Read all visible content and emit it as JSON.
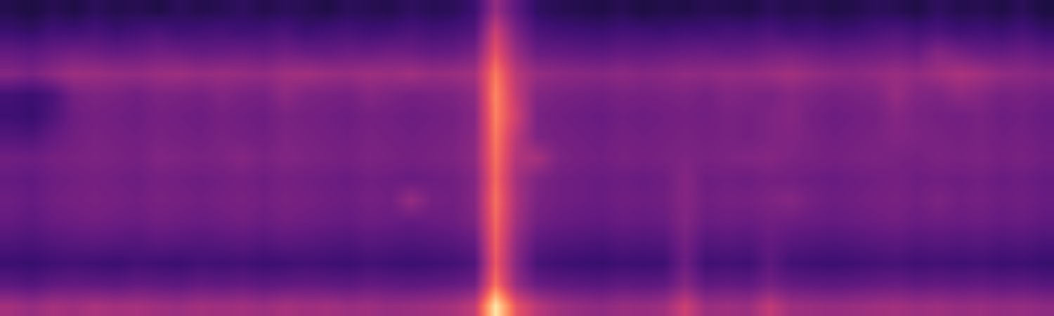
{
  "chart_data": {
    "type": "heatmap",
    "tick_labels": false,
    "color": "magma",
    "zlim": [
      0,
      1
    ],
    "cells": [
      [
        0.14,
        0.12,
        0.15,
        0.13,
        0.16,
        0.14,
        0.15,
        0.13,
        0.16,
        0.14,
        0.15,
        0.17,
        0.14,
        0.16,
        0.15,
        0.13,
        0.16,
        0.15,
        0.14,
        0.17,
        0.15,
        0.16,
        0.2,
        0.42,
        0.28,
        0.17,
        0.15,
        0.14,
        0.13,
        0.15,
        0.12,
        0.14,
        0.13,
        0.15,
        0.14,
        0.13,
        0.16,
        0.14,
        0.15,
        0.13,
        0.14,
        0.16,
        0.15,
        0.13,
        0.17,
        0.14,
        0.15,
        0.13,
        0.16,
        0.12
      ],
      [
        0.2,
        0.18,
        0.22,
        0.21,
        0.23,
        0.2,
        0.22,
        0.24,
        0.21,
        0.22,
        0.23,
        0.21,
        0.22,
        0.24,
        0.2,
        0.22,
        0.23,
        0.21,
        0.22,
        0.24,
        0.22,
        0.23,
        0.26,
        0.55,
        0.35,
        0.24,
        0.22,
        0.21,
        0.2,
        0.22,
        0.21,
        0.2,
        0.22,
        0.21,
        0.23,
        0.22,
        0.24,
        0.21,
        0.22,
        0.2,
        0.21,
        0.23,
        0.25,
        0.22,
        0.24,
        0.21,
        0.22,
        0.2,
        0.23,
        0.19
      ],
      [
        0.3,
        0.28,
        0.31,
        0.33,
        0.32,
        0.3,
        0.31,
        0.33,
        0.32,
        0.3,
        0.31,
        0.32,
        0.3,
        0.33,
        0.31,
        0.3,
        0.32,
        0.31,
        0.33,
        0.32,
        0.3,
        0.31,
        0.35,
        0.62,
        0.42,
        0.31,
        0.3,
        0.29,
        0.28,
        0.3,
        0.29,
        0.3,
        0.31,
        0.32,
        0.3,
        0.31,
        0.33,
        0.34,
        0.32,
        0.3,
        0.31,
        0.32,
        0.33,
        0.31,
        0.38,
        0.34,
        0.31,
        0.3,
        0.32,
        0.29
      ],
      [
        0.38,
        0.35,
        0.4,
        0.44,
        0.43,
        0.42,
        0.41,
        0.43,
        0.44,
        0.42,
        0.43,
        0.42,
        0.41,
        0.44,
        0.45,
        0.43,
        0.42,
        0.44,
        0.43,
        0.45,
        0.42,
        0.43,
        0.45,
        0.72,
        0.5,
        0.42,
        0.4,
        0.39,
        0.38,
        0.4,
        0.38,
        0.39,
        0.41,
        0.4,
        0.42,
        0.41,
        0.43,
        0.45,
        0.42,
        0.4,
        0.39,
        0.41,
        0.43,
        0.41,
        0.44,
        0.47,
        0.45,
        0.41,
        0.4,
        0.38
      ],
      [
        0.22,
        0.2,
        0.24,
        0.34,
        0.36,
        0.35,
        0.33,
        0.36,
        0.35,
        0.34,
        0.37,
        0.35,
        0.34,
        0.4,
        0.36,
        0.35,
        0.34,
        0.38,
        0.36,
        0.34,
        0.35,
        0.36,
        0.4,
        0.75,
        0.52,
        0.37,
        0.35,
        0.34,
        0.33,
        0.35,
        0.34,
        0.35,
        0.36,
        0.34,
        0.37,
        0.36,
        0.35,
        0.38,
        0.36,
        0.34,
        0.35,
        0.36,
        0.42,
        0.37,
        0.36,
        0.4,
        0.38,
        0.34,
        0.35,
        0.33
      ],
      [
        0.21,
        0.19,
        0.25,
        0.32,
        0.34,
        0.33,
        0.32,
        0.34,
        0.33,
        0.32,
        0.34,
        0.33,
        0.32,
        0.35,
        0.34,
        0.33,
        0.32,
        0.34,
        0.33,
        0.32,
        0.33,
        0.34,
        0.38,
        0.74,
        0.55,
        0.35,
        0.33,
        0.32,
        0.31,
        0.33,
        0.32,
        0.33,
        0.34,
        0.33,
        0.35,
        0.34,
        0.36,
        0.38,
        0.34,
        0.32,
        0.33,
        0.34,
        0.38,
        0.35,
        0.34,
        0.33,
        0.35,
        0.32,
        0.33,
        0.31
      ],
      [
        0.26,
        0.25,
        0.3,
        0.33,
        0.35,
        0.34,
        0.33,
        0.35,
        0.34,
        0.33,
        0.35,
        0.34,
        0.33,
        0.36,
        0.35,
        0.34,
        0.33,
        0.35,
        0.34,
        0.33,
        0.34,
        0.35,
        0.39,
        0.72,
        0.5,
        0.36,
        0.34,
        0.33,
        0.32,
        0.34,
        0.33,
        0.34,
        0.35,
        0.34,
        0.35,
        0.34,
        0.36,
        0.37,
        0.35,
        0.33,
        0.34,
        0.35,
        0.37,
        0.36,
        0.35,
        0.34,
        0.35,
        0.33,
        0.34,
        0.32
      ],
      [
        0.33,
        0.32,
        0.34,
        0.35,
        0.36,
        0.35,
        0.34,
        0.37,
        0.36,
        0.35,
        0.36,
        0.38,
        0.35,
        0.37,
        0.36,
        0.35,
        0.34,
        0.36,
        0.35,
        0.34,
        0.35,
        0.36,
        0.4,
        0.7,
        0.48,
        0.46,
        0.36,
        0.34,
        0.33,
        0.35,
        0.34,
        0.35,
        0.36,
        0.35,
        0.36,
        0.37,
        0.38,
        0.36,
        0.35,
        0.34,
        0.35,
        0.36,
        0.35,
        0.34,
        0.36,
        0.35,
        0.36,
        0.34,
        0.35,
        0.33
      ],
      [
        0.3,
        0.29,
        0.32,
        0.33,
        0.34,
        0.33,
        0.32,
        0.34,
        0.33,
        0.32,
        0.33,
        0.34,
        0.32,
        0.34,
        0.33,
        0.32,
        0.31,
        0.33,
        0.32,
        0.31,
        0.32,
        0.33,
        0.37,
        0.68,
        0.45,
        0.36,
        0.33,
        0.32,
        0.31,
        0.32,
        0.31,
        0.32,
        0.38,
        0.32,
        0.33,
        0.32,
        0.34,
        0.33,
        0.32,
        0.31,
        0.32,
        0.33,
        0.34,
        0.32,
        0.33,
        0.32,
        0.33,
        0.31,
        0.32,
        0.3
      ],
      [
        0.32,
        0.3,
        0.33,
        0.34,
        0.35,
        0.34,
        0.33,
        0.35,
        0.34,
        0.33,
        0.34,
        0.35,
        0.33,
        0.35,
        0.34,
        0.33,
        0.32,
        0.34,
        0.33,
        0.42,
        0.34,
        0.33,
        0.38,
        0.7,
        0.46,
        0.35,
        0.33,
        0.32,
        0.31,
        0.33,
        0.32,
        0.33,
        0.38,
        0.33,
        0.34,
        0.34,
        0.36,
        0.38,
        0.34,
        0.32,
        0.33,
        0.34,
        0.35,
        0.33,
        0.36,
        0.33,
        0.34,
        0.32,
        0.33,
        0.31
      ],
      [
        0.3,
        0.28,
        0.31,
        0.32,
        0.33,
        0.32,
        0.31,
        0.33,
        0.32,
        0.31,
        0.32,
        0.33,
        0.31,
        0.33,
        0.32,
        0.31,
        0.3,
        0.32,
        0.31,
        0.3,
        0.31,
        0.32,
        0.36,
        0.68,
        0.44,
        0.33,
        0.31,
        0.3,
        0.29,
        0.31,
        0.3,
        0.31,
        0.37,
        0.31,
        0.32,
        0.31,
        0.33,
        0.32,
        0.31,
        0.3,
        0.31,
        0.32,
        0.33,
        0.31,
        0.32,
        0.31,
        0.32,
        0.3,
        0.31,
        0.29
      ],
      [
        0.25,
        0.24,
        0.26,
        0.27,
        0.28,
        0.27,
        0.26,
        0.28,
        0.27,
        0.26,
        0.27,
        0.28,
        0.26,
        0.28,
        0.27,
        0.26,
        0.25,
        0.27,
        0.26,
        0.25,
        0.26,
        0.27,
        0.3,
        0.66,
        0.4,
        0.28,
        0.26,
        0.25,
        0.24,
        0.26,
        0.25,
        0.26,
        0.34,
        0.26,
        0.27,
        0.26,
        0.3,
        0.27,
        0.26,
        0.25,
        0.26,
        0.27,
        0.28,
        0.26,
        0.27,
        0.26,
        0.27,
        0.25,
        0.26,
        0.24
      ],
      [
        0.2,
        0.19,
        0.21,
        0.22,
        0.21,
        0.2,
        0.22,
        0.21,
        0.2,
        0.22,
        0.21,
        0.22,
        0.2,
        0.21,
        0.22,
        0.21,
        0.2,
        0.22,
        0.21,
        0.2,
        0.21,
        0.22,
        0.25,
        0.64,
        0.38,
        0.23,
        0.21,
        0.2,
        0.19,
        0.21,
        0.2,
        0.21,
        0.32,
        0.21,
        0.22,
        0.21,
        0.28,
        0.22,
        0.21,
        0.2,
        0.21,
        0.22,
        0.23,
        0.21,
        0.22,
        0.21,
        0.22,
        0.2,
        0.21,
        0.19
      ],
      [
        0.28,
        0.26,
        0.29,
        0.3,
        0.29,
        0.28,
        0.3,
        0.29,
        0.28,
        0.3,
        0.29,
        0.3,
        0.28,
        0.29,
        0.3,
        0.29,
        0.28,
        0.3,
        0.29,
        0.28,
        0.29,
        0.3,
        0.33,
        0.7,
        0.42,
        0.31,
        0.29,
        0.28,
        0.27,
        0.29,
        0.28,
        0.29,
        0.38,
        0.29,
        0.3,
        0.29,
        0.34,
        0.3,
        0.29,
        0.28,
        0.29,
        0.3,
        0.31,
        0.29,
        0.3,
        0.29,
        0.3,
        0.28,
        0.29,
        0.27
      ],
      [
        0.45,
        0.42,
        0.46,
        0.44,
        0.47,
        0.45,
        0.46,
        0.44,
        0.43,
        0.45,
        0.44,
        0.45,
        0.43,
        0.46,
        0.44,
        0.45,
        0.43,
        0.44,
        0.42,
        0.43,
        0.44,
        0.46,
        0.52,
        0.95,
        0.62,
        0.5,
        0.44,
        0.42,
        0.4,
        0.43,
        0.42,
        0.44,
        0.55,
        0.43,
        0.44,
        0.43,
        0.52,
        0.44,
        0.43,
        0.42,
        0.43,
        0.44,
        0.45,
        0.43,
        0.44,
        0.42,
        0.43,
        0.41,
        0.42,
        0.4
      ]
    ]
  }
}
